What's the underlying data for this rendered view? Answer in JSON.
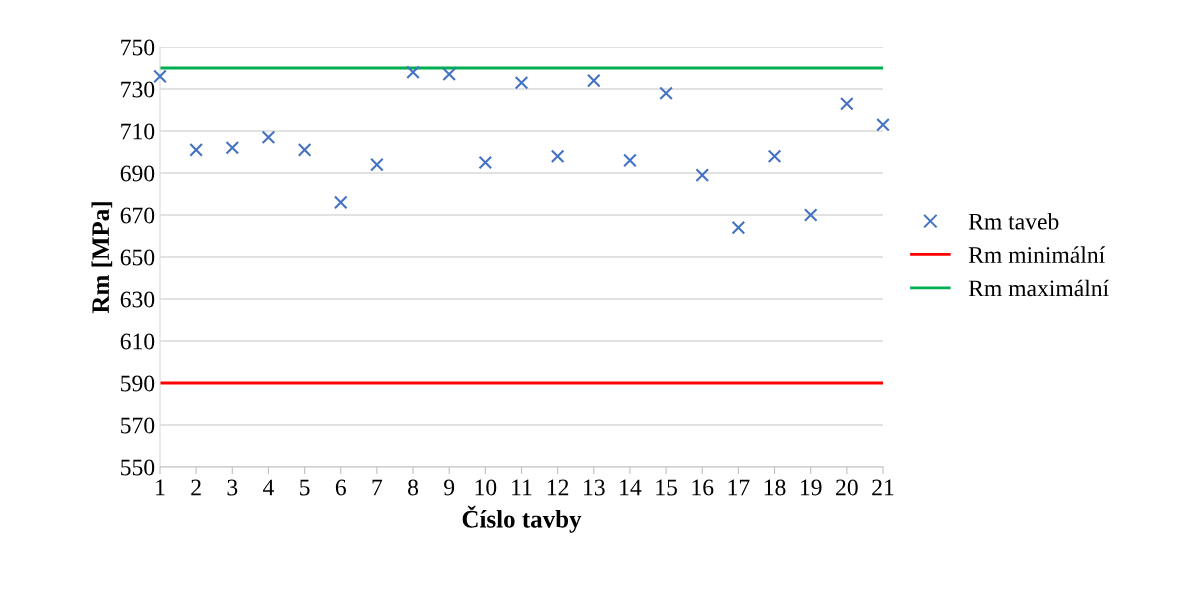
{
  "chart_data": {
    "type": "scatter",
    "xlabel": "Číslo tavby",
    "ylabel": "Rm [MPa]",
    "categories": [
      "1",
      "2",
      "3",
      "4",
      "5",
      "6",
      "7",
      "8",
      "9",
      "10",
      "11",
      "12",
      "13",
      "14",
      "15",
      "16",
      "17",
      "18",
      "19",
      "20",
      "21"
    ],
    "series": [
      {
        "name": "Rm taveb",
        "color": "#4472c4",
        "marker": "cross",
        "values": [
          736,
          701,
          702,
          707,
          701,
          676,
          694,
          738,
          737,
          695,
          733,
          698,
          734,
          696,
          728,
          689,
          664,
          698,
          670,
          723,
          713
        ]
      },
      {
        "name": "Rm minimální",
        "type": "line",
        "color": "#ff0000",
        "marker": "none",
        "line_style": "solid",
        "values": [
          590,
          590,
          590,
          590,
          590,
          590,
          590,
          590,
          590,
          590,
          590,
          590,
          590,
          590,
          590,
          590,
          590,
          590,
          590,
          590,
          590
        ]
      },
      {
        "name": "Rm maximální",
        "type": "line",
        "color": "#00b050",
        "marker": "none",
        "line_style": "solid",
        "values": [
          740,
          740,
          740,
          740,
          740,
          740,
          740,
          740,
          740,
          740,
          740,
          740,
          740,
          740,
          740,
          740,
          740,
          740,
          740,
          740,
          740
        ]
      }
    ],
    "ylim": [
      550,
      750
    ],
    "yticks": [
      550,
      570,
      590,
      610,
      630,
      650,
      670,
      690,
      710,
      730,
      750
    ],
    "grid": "y",
    "legend": "right"
  }
}
